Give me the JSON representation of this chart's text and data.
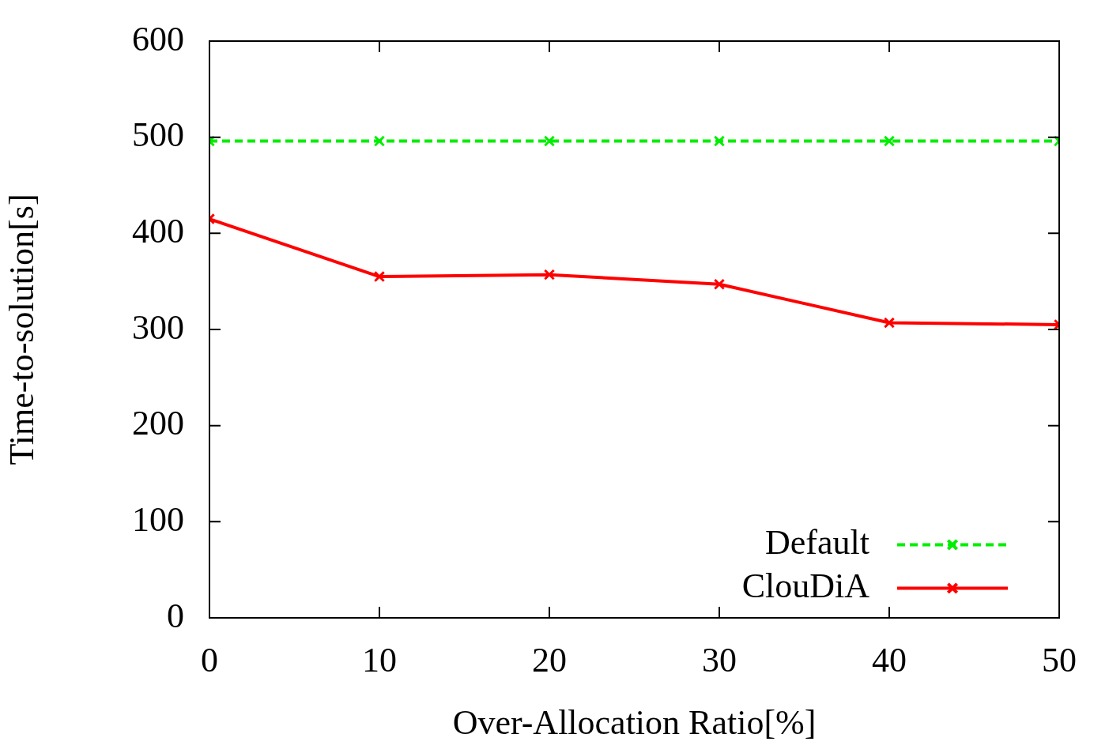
{
  "chart_data": {
    "type": "line",
    "xlabel": "Over-Allocation Ratio[%]",
    "ylabel": "Time-to-solution[s]",
    "x": [
      0,
      10,
      20,
      30,
      40,
      50
    ],
    "series": [
      {
        "name": "Default",
        "color": "#00ee00",
        "values": [
          496,
          496,
          496,
          496,
          496,
          496
        ],
        "line_style": "dashed",
        "marker": "cross"
      },
      {
        "name": "ClouDiA",
        "color": "#ff0000",
        "values": [
          415,
          355,
          357,
          347,
          307,
          305
        ],
        "line_style": "solid",
        "marker": "cross"
      }
    ],
    "xlim": [
      0,
      50
    ],
    "xticks": [
      0,
      10,
      20,
      30,
      40,
      50
    ],
    "ylim": [
      0,
      600
    ],
    "yticks": [
      0,
      100,
      200,
      300,
      400,
      500,
      600
    ],
    "legend": "bottom right",
    "grid": false
  }
}
